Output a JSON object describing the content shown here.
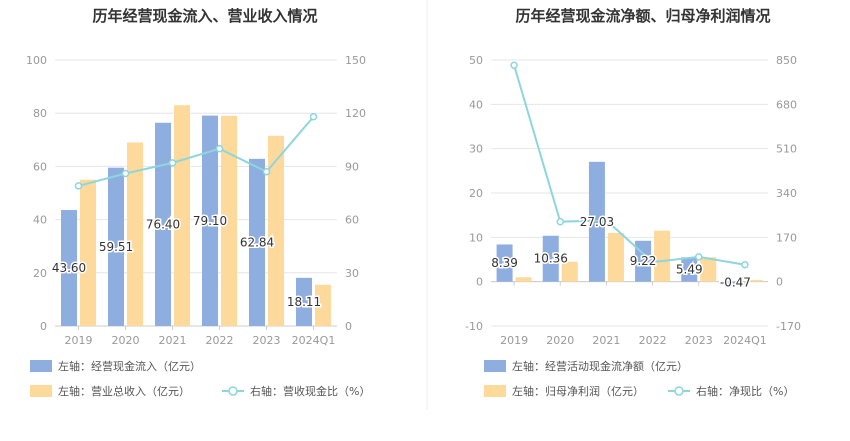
{
  "chart_data": [
    {
      "type": "bar",
      "title": "历年经营现金流入、营业收入情况",
      "categories": [
        "2019",
        "2020",
        "2021",
        "2022",
        "2023",
        "2024Q1"
      ],
      "left_axis": {
        "ylim": [
          0,
          100
        ],
        "ticks": [
          "0",
          "20",
          "40",
          "60",
          "80",
          "100"
        ]
      },
      "right_axis": {
        "ylim": [
          0,
          150
        ],
        "ticks": [
          "0",
          "30",
          "60",
          "90",
          "120",
          "150"
        ]
      },
      "series": [
        {
          "name": "左轴：经营现金流入（亿元）",
          "axis": "left",
          "kind": "bar",
          "color": "#8eaedf",
          "values": [
            43.6,
            59.51,
            76.4,
            79.1,
            62.84,
            18.11
          ],
          "labels": [
            "43.60",
            "59.51",
            "76.40",
            "79.10",
            "62.84",
            "18.11"
          ]
        },
        {
          "name": "左轴：营业总收入（亿元）",
          "axis": "left",
          "kind": "bar",
          "color": "#fdd99b",
          "values": [
            55,
            69,
            83,
            79,
            71.5,
            15.5
          ]
        },
        {
          "name": "右轴：营收现金比（%）",
          "axis": "right",
          "kind": "line",
          "color": "#8dd6de",
          "values": [
            79,
            86,
            92,
            100,
            87,
            118
          ]
        }
      ],
      "grid": true,
      "legend_position": "bottom"
    },
    {
      "type": "bar",
      "title": "历年经营现金流净额、归母净利润情况",
      "categories": [
        "2019",
        "2020",
        "2021",
        "2022",
        "2023",
        "2024Q1"
      ],
      "left_axis": {
        "ylim": [
          -10,
          50
        ],
        "ticks": [
          "-10",
          "0",
          "10",
          "20",
          "30",
          "40",
          "50"
        ]
      },
      "right_axis": {
        "ylim": [
          -170,
          850
        ],
        "ticks": [
          "-170",
          "0",
          "170",
          "340",
          "510",
          "680",
          "850"
        ]
      },
      "series": [
        {
          "name": "左轴：经营活动现金流净额（亿元）",
          "axis": "left",
          "kind": "bar",
          "color": "#8eaedf",
          "values": [
            8.39,
            10.36,
            27.03,
            9.22,
            5.49,
            -0.47
          ],
          "labels": [
            "8.39",
            "10.36",
            "27.03",
            "9.22",
            "5.49",
            "-0.47"
          ]
        },
        {
          "name": "左轴：归母净利润（亿元）",
          "axis": "left",
          "kind": "bar",
          "color": "#fdd99b",
          "values": [
            1,
            4.5,
            11,
            11.5,
            5.5,
            0.4
          ]
        },
        {
          "name": "右轴：净现比（%）",
          "axis": "right",
          "kind": "line",
          "color": "#8dd6de",
          "values": [
            830,
            230,
            235,
            75,
            95,
            65
          ]
        }
      ],
      "grid": true,
      "legend_position": "bottom"
    }
  ]
}
